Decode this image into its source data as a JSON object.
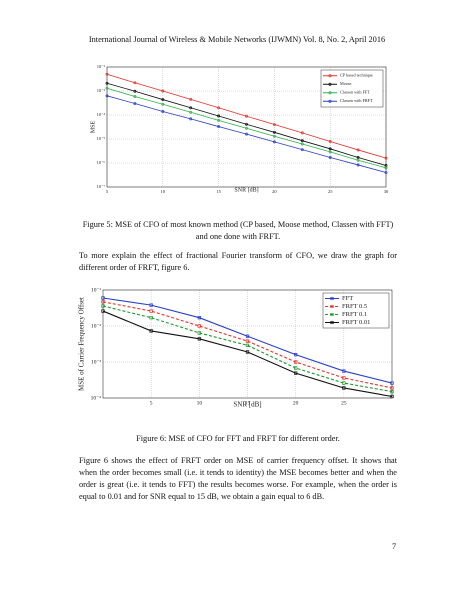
{
  "header": {
    "title": "International Journal of Wireless & Mobile Networks (IJWMN) Vol. 8, No. 2, April 2016"
  },
  "chart_data": [
    {
      "type": "line",
      "ylabel": "MSE",
      "xlabel": "SNR [dB]",
      "x": [
        5,
        7.5,
        10,
        12.5,
        15,
        17.5,
        20,
        22.5,
        25,
        27.5,
        30
      ],
      "xlim": [
        5,
        30
      ],
      "xticks": [
        5,
        10,
        15,
        20,
        25,
        30
      ],
      "ylim": [
        1e-07,
        0.01
      ],
      "log_y": true,
      "grid": true,
      "legend": "upper right",
      "yticks": [
        {
          "value": 0.01,
          "label": "10⁻²"
        },
        {
          "value": 0.001,
          "label": "10⁻³"
        },
        {
          "value": 0.0001,
          "label": "10⁻⁴"
        },
        {
          "value": 1e-05,
          "label": "10⁻⁵"
        },
        {
          "value": 1e-06,
          "label": "10⁻⁶"
        },
        {
          "value": 1e-07,
          "label": "10⁻⁷"
        }
      ],
      "series": [
        {
          "name": "CP based technique",
          "color": "#e8322d",
          "marker": "circle",
          "line_style": "solid",
          "values": [
            0.005,
            0.0022,
            0.001,
            0.00045,
            0.0002,
            8.9e-05,
            4e-05,
            1.8e-05,
            7.9e-06,
            3.5e-06,
            1.6e-06
          ]
        },
        {
          "name": "Moose",
          "color": "#111111",
          "marker": "circle",
          "line_style": "solid",
          "values": [
            0.0021,
            0.00098,
            0.00044,
            0.0002,
            9.1e-05,
            4.1e-05,
            1.9e-05,
            8.5e-06,
            3.9e-06,
            1.7e-06,
            7.9e-07
          ]
        },
        {
          "name": "Classen with FFT",
          "color": "#2db34a",
          "marker": "circle",
          "line_style": "solid",
          "values": [
            0.0013,
            0.00059,
            0.00028,
            0.00013,
            6e-05,
            2.8e-05,
            1.3e-05,
            6.2e-06,
            2.9e-06,
            1.3e-06,
            6.3e-07
          ]
        },
        {
          "name": "Classen with FRFT",
          "color": "#2a3fc9",
          "marker": "circle",
          "line_style": "solid",
          "values": [
            0.00063,
            0.0003,
            0.00014,
            6.9e-05,
            3.3e-05,
            1.6e-05,
            7.6e-06,
            3.6e-06,
            1.7e-06,
            8.3e-07,
            4e-07
          ]
        }
      ]
    },
    {
      "type": "line",
      "ylabel": "MSE of Carrier Frequency Offset",
      "xlabel": "SNR [dB]",
      "x": [
        0,
        5,
        10,
        15,
        20,
        25,
        30
      ],
      "xlim": [
        0,
        30
      ],
      "xticks": [
        5,
        10,
        15,
        20,
        25
      ],
      "ylim": [
        0.0001,
        0.1
      ],
      "log_y": true,
      "grid": true,
      "legend": "upper right",
      "yticks": [
        {
          "value": 0.1,
          "label": "10⁻¹"
        },
        {
          "value": 0.01,
          "label": "10⁻²"
        },
        {
          "value": 0.001,
          "label": "10⁻³"
        },
        {
          "value": 0.0001,
          "label": "10⁻⁴"
        }
      ],
      "series": [
        {
          "name": "FFT",
          "color": "#2a3fc9",
          "marker": "square",
          "line_style": "solid",
          "values": [
            0.06,
            0.038,
            0.017,
            0.0052,
            0.0016,
            0.00056,
            0.00026
          ]
        },
        {
          "name": "FRFT 0.5",
          "color": "#e8322d",
          "marker": "square",
          "line_style": "dashed",
          "values": [
            0.047,
            0.026,
            0.01,
            0.0038,
            0.001,
            0.00036,
            0.00019
          ]
        },
        {
          "name": "FRFT 0.1",
          "color": "#1a9a2a",
          "marker": "square",
          "line_style": "dashed",
          "values": [
            0.036,
            0.017,
            0.0064,
            0.0029,
            0.00068,
            0.00026,
            0.00015
          ]
        },
        {
          "name": "FRFT 0.01",
          "color": "#111111",
          "marker": "square",
          "line_style": "solid",
          "values": [
            0.026,
            0.0073,
            0.0044,
            0.0019,
            0.00049,
            0.00019,
            0.00011
          ]
        }
      ]
    }
  ],
  "captions": [
    "Figure 5: MSE of CFO of most known method (CP based, Moose method, Classen with FFT) and one done with FRFT.",
    "Figure 6: MSE of CFO for FFT and FRFT for different order."
  ],
  "paragraphs": [
    "To more explain the effect of fractional Fourier transform of CFO, we draw the graph for different order of FRFT, figure 6.",
    "Figure 6 shows the effect of FRFT order on MSE of carrier frequency offset. It shows that when the order becomes small (i.e. it tends to identity) the MSE becomes better and when the order is great (i.e. it tends to FFT) the results becomes worse. For example, when the order is equal to 0.01 and for SNR equal to 15 dB, we obtain a gain equal to 6 dB."
  ],
  "page_number": "7"
}
